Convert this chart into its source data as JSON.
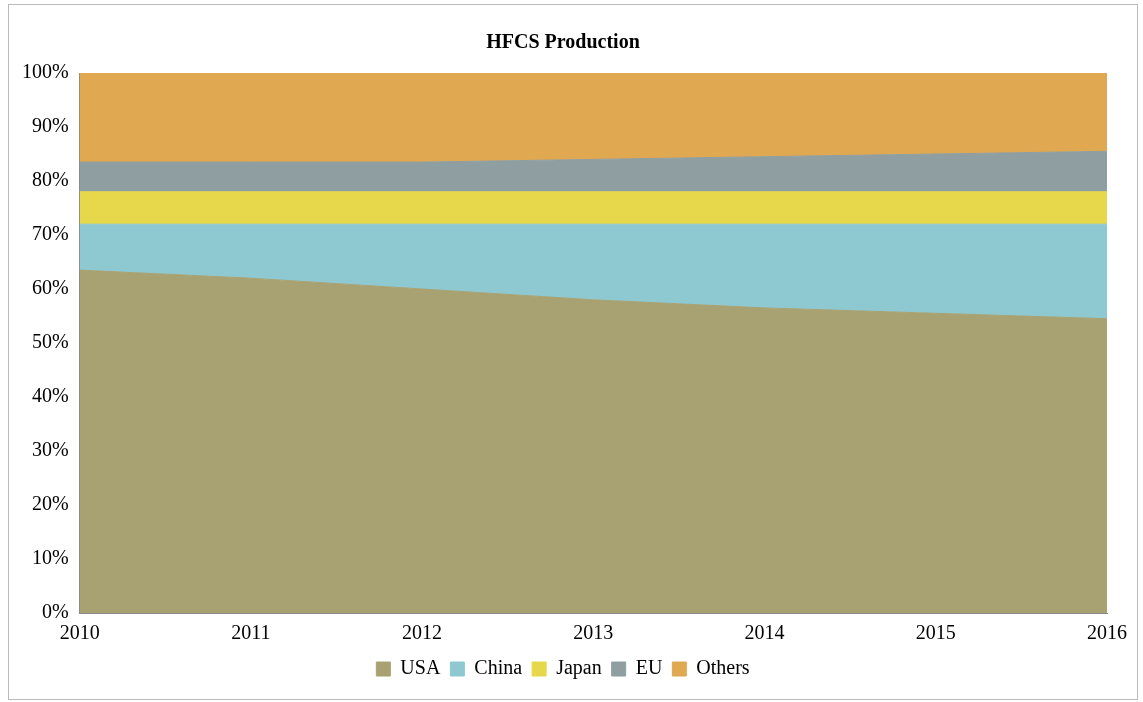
{
  "chart_data": {
    "type": "area",
    "title": "HFCS Production",
    "stacked": true,
    "categories": [
      "2010",
      "2011",
      "2012",
      "2013",
      "2014",
      "2015",
      "2016"
    ],
    "series": [
      {
        "name": "USA",
        "color": "#a8a272",
        "values": [
          63.5,
          62,
          60,
          58,
          56.5,
          55.5,
          54.5
        ]
      },
      {
        "name": "China",
        "color": "#8ec8d0",
        "values": [
          8.5,
          10,
          12,
          14,
          15.5,
          16.5,
          17.5
        ]
      },
      {
        "name": "Japan",
        "color": "#e6d84a",
        "values": [
          6,
          6,
          6,
          6,
          6,
          6,
          6
        ]
      },
      {
        "name": "EU",
        "color": "#8f9ea0",
        "values": [
          5.5,
          5.5,
          5.5,
          6,
          6.5,
          7,
          7.5
        ]
      },
      {
        "name": "Others",
        "color": "#e0a850",
        "values": [
          16.5,
          16.5,
          16.5,
          16,
          15.5,
          15,
          14.5
        ]
      }
    ],
    "ylim": [
      0,
      100
    ],
    "yticks": [
      {
        "value": 0,
        "label": "0%"
      },
      {
        "value": 10,
        "label": "10%"
      },
      {
        "value": 20,
        "label": "20%"
      },
      {
        "value": 30,
        "label": "30%"
      },
      {
        "value": 40,
        "label": "40%"
      },
      {
        "value": 50,
        "label": "50%"
      },
      {
        "value": 60,
        "label": "60%"
      },
      {
        "value": 70,
        "label": "70%"
      },
      {
        "value": 80,
        "label": "80%"
      },
      {
        "value": 90,
        "label": "90%"
      },
      {
        "value": 100,
        "label": "100%"
      }
    ],
    "grid": false,
    "legend": "bottom"
  }
}
